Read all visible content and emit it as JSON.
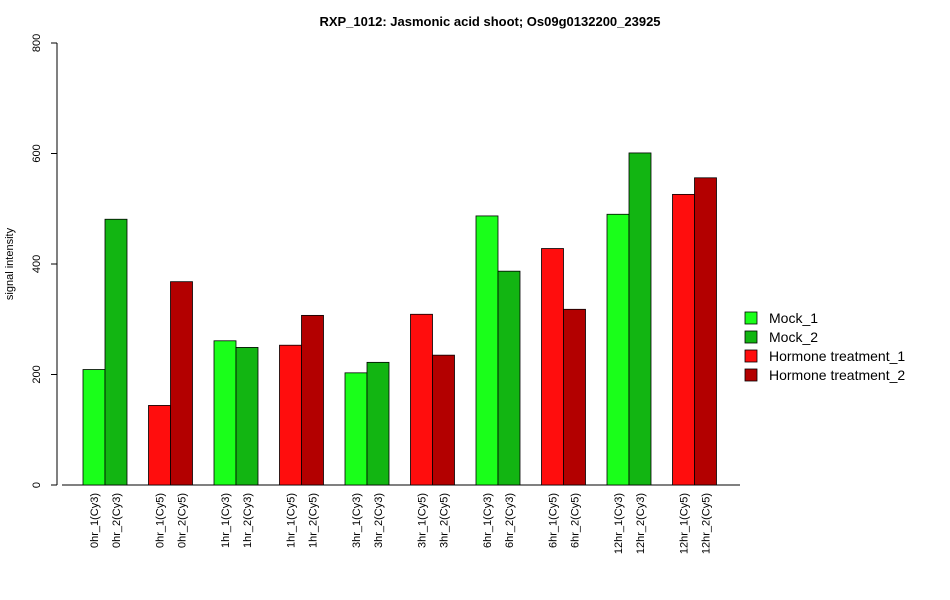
{
  "chart_data": {
    "type": "bar",
    "title": "RXP_1012: Jasmonic acid shoot; Os09g0132200_23925",
    "ylabel": "signal intensity",
    "xlabel": "",
    "ylim": [
      0,
      800
    ],
    "yticks": [
      0,
      200,
      400,
      600,
      800
    ],
    "legend_position": "right",
    "series_colors": {
      "Mock_1": "#1aff1a",
      "Mock_2": "#12b512",
      "Hormone treatment_1": "#ff0d0d",
      "Hormone treatment_2": "#b30000"
    },
    "legend": [
      "Mock_1",
      "Mock_2",
      "Hormone treatment_1",
      "Hormone treatment_2"
    ],
    "groups": [
      {
        "bars": [
          {
            "label": "0hr_1(Cy3)",
            "series": "Mock_1",
            "value": 209
          },
          {
            "label": "0hr_2(Cy3)",
            "series": "Mock_2",
            "value": 481
          }
        ]
      },
      {
        "bars": [
          {
            "label": "0hr_1(Cy5)",
            "series": "Hormone treatment_1",
            "value": 144
          },
          {
            "label": "0hr_2(Cy5)",
            "series": "Hormone treatment_2",
            "value": 368
          }
        ]
      },
      {
        "bars": [
          {
            "label": "1hr_1(Cy3)",
            "series": "Mock_1",
            "value": 261
          },
          {
            "label": "1hr_2(Cy3)",
            "series": "Mock_2",
            "value": 249
          }
        ]
      },
      {
        "bars": [
          {
            "label": "1hr_1(Cy5)",
            "series": "Hormone treatment_1",
            "value": 253
          },
          {
            "label": "1hr_2(Cy5)",
            "series": "Hormone treatment_2",
            "value": 307
          }
        ]
      },
      {
        "bars": [
          {
            "label": "3hr_1(Cy3)",
            "series": "Mock_1",
            "value": 203
          },
          {
            "label": "3hr_2(Cy3)",
            "series": "Mock_2",
            "value": 222
          }
        ]
      },
      {
        "bars": [
          {
            "label": "3hr_1(Cy5)",
            "series": "Hormone treatment_1",
            "value": 309
          },
          {
            "label": "3hr_2(Cy5)",
            "series": "Hormone treatment_2",
            "value": 235
          }
        ]
      },
      {
        "bars": [
          {
            "label": "6hr_1(Cy3)",
            "series": "Mock_1",
            "value": 487
          },
          {
            "label": "6hr_2(Cy3)",
            "series": "Mock_2",
            "value": 387
          }
        ]
      },
      {
        "bars": [
          {
            "label": "6hr_1(Cy5)",
            "series": "Hormone treatment_1",
            "value": 428
          },
          {
            "label": "6hr_2(Cy5)",
            "series": "Hormone treatment_2",
            "value": 318
          }
        ]
      },
      {
        "bars": [
          {
            "label": "12hr_1(Cy3)",
            "series": "Mock_1",
            "value": 490
          },
          {
            "label": "12hr_2(Cy3)",
            "series": "Mock_2",
            "value": 601
          }
        ]
      },
      {
        "bars": [
          {
            "label": "12hr_1(Cy5)",
            "series": "Hormone treatment_1",
            "value": 526
          },
          {
            "label": "12hr_2(Cy5)",
            "series": "Hormone treatment_2",
            "value": 556
          }
        ]
      }
    ]
  }
}
